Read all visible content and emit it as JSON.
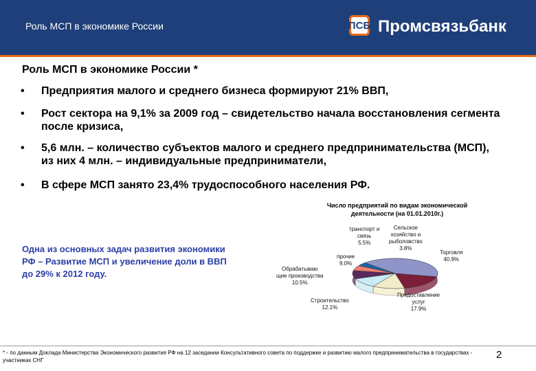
{
  "header": {
    "title": "Роль МСП в экономике России",
    "logo_mark": "ПСБ",
    "logo_text": "Промсвязьбанк"
  },
  "main": {
    "subtitle": "Роль МСП в экономике России *",
    "bullets": [
      "Предприятия малого и среднего бизнеса формируют  21% ВВП,",
      "Рост сектора на 9,1% за 2009 год – свидетельство начала восстановления сегмента после кризиса,",
      "5,6 млн. – количество субъектов малого и среднего предпринимательства (МСП), из них 4 млн. – индивидуальные предприниматели,",
      "В сфере МСП занято 23,4% трудоспособного населения РФ."
    ],
    "bullet_symbol": "•",
    "callout": "Одна из основных задач развития экономики РФ – Развитие МСП и увеличение доли в ВВП до 29% к 2012 году."
  },
  "chart_data": {
    "type": "pie",
    "title": "Число предприятий по видам экономической деятельности (на 01.01.2010г.)",
    "slices": [
      {
        "label": "Торговля",
        "value": 40.9,
        "text": "Торговля\n40.9%",
        "color": "#8f95c8"
      },
      {
        "label": "Предоставление услуг",
        "value": 17.9,
        "text": "Предоставление\nуслуг\n17.9%",
        "color": "#7a1e3a"
      },
      {
        "label": "Строительство",
        "value": 12.1,
        "text": "Строительство\n12.1%",
        "color": "#f2edc9"
      },
      {
        "label": "Обрабатывающие производства",
        "value": 10.5,
        "text": "Обрабатываю\nщие производства\n10.5%",
        "color": "#c9ecf4"
      },
      {
        "label": "Прочие",
        "value": 9.0,
        "text": "прочие\n9.0%",
        "color": "#5b2a5c"
      },
      {
        "label": "Транспорт и связь",
        "value": 5.5,
        "text": "транспорт и\nсвязь\n5.5%",
        "color": "#ef7f72"
      },
      {
        "label": "Сельское хозяйство и рыболовство",
        "value": 3.8,
        "text": "Сельское\nхозяйство и\nрыболовство\n3.8%",
        "color": "#1a64a8"
      }
    ]
  },
  "footer": {
    "footnote": "* - по данным Доклада Министерства Экономического развития РФ на 12 заседании Консультативного совета по поддержке и развитию малого предпринимательства в государствах - участниках СНГ",
    "page_number": "2"
  },
  "colors": {
    "header_bg": "#1f3f7a",
    "accent_orange": "#e66a1a",
    "callout_text": "#2b3fa6"
  }
}
